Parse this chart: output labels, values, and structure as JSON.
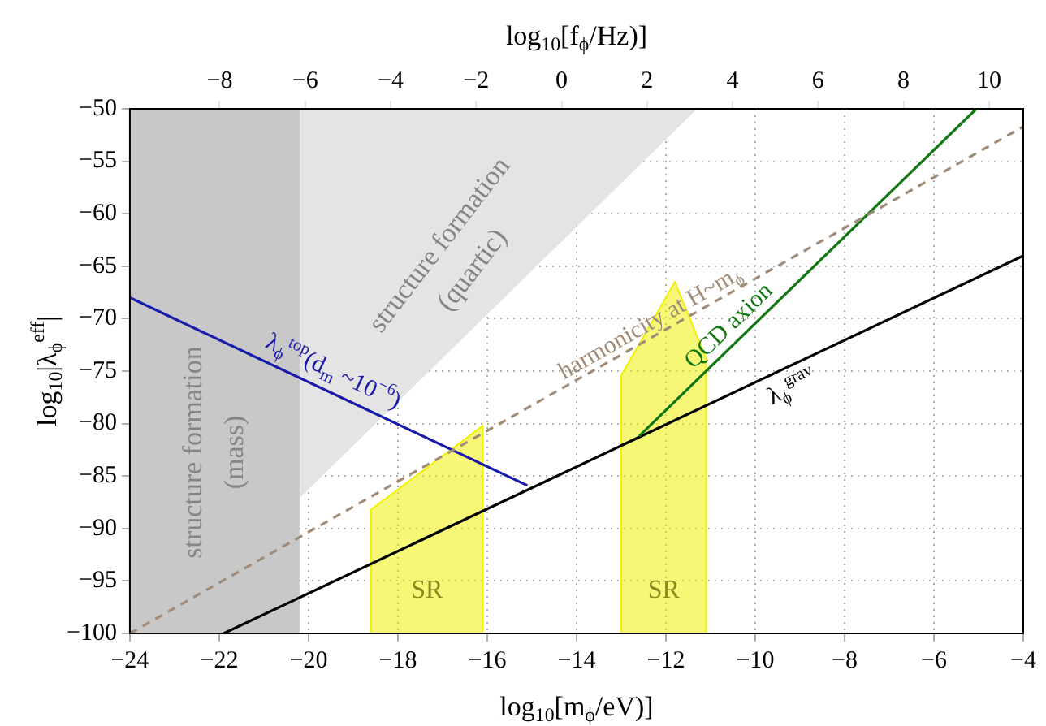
{
  "chart_data": {
    "type": "line",
    "xlabel": "log$_{10}$[m$_{ϕ}$/eV)]",
    "ylabel": "log$_{10}$|λ$_{ϕ}$$^{eff}$|",
    "x2label": "log$_{10}$[f$_{ϕ}$/Hz)]",
    "xlim": [
      -24,
      -4
    ],
    "xticks": [
      -24,
      -22,
      -20,
      -18,
      -16,
      -14,
      -12,
      -10,
      -8,
      -6,
      -4
    ],
    "ylim": [
      -100,
      -50
    ],
    "yticks": [
      -100,
      -95,
      -90,
      -85,
      -80,
      -75,
      -70,
      -65,
      -60,
      -55,
      -50
    ],
    "x2lim": [
      -10.1,
      10.8
    ],
    "x2ticks": [
      -8,
      -6,
      -4,
      -2,
      0,
      2,
      4,
      6,
      8,
      10
    ],
    "grid": true,
    "legend": false,
    "marker": "none",
    "bands": [
      {
        "axis": "x",
        "from": -24,
        "to": -20.2,
        "color": "#c8c8c8",
        "label": "structure formation (mass)"
      }
    ],
    "series": [
      {
        "type": "area",
        "name": "structure formation (quartic)",
        "color": "#e4e4e4",
        "x": [
          -20.2,
          -11.3
        ],
        "values": [
          -87.1,
          -50
        ]
      },
      {
        "type": "area",
        "name": "SR",
        "color": "#f0f000",
        "x": [
          -18.6,
          -18.6,
          -16.1,
          -16.1
        ],
        "values": [
          -100,
          -88.2,
          -80.2,
          -100
        ]
      },
      {
        "type": "area",
        "name": "SR",
        "color": "#f0f000",
        "x": [
          -13.0,
          -13.0,
          -11.8,
          -11.1,
          -11.1
        ],
        "values": [
          -100,
          -75.4,
          -66.5,
          -73.8,
          -100
        ]
      },
      {
        "name": "harmonicity at H~m$_{ϕ}$",
        "color": "#a08c78",
        "line_style": "dashed",
        "x": [
          -24,
          -4
        ],
        "values": [
          -100,
          -51.7
        ]
      },
      {
        "name": "λ$_{ϕ}$$^{top}$(d$_{m}$ ~10$^{−6}$)",
        "color": "#1a1aaa",
        "x": [
          -24,
          -15.1
        ],
        "values": [
          -68,
          -85.9
        ]
      },
      {
        "name": "QCD axion",
        "color": "#117711",
        "x": [
          -12.6,
          -5.05
        ],
        "values": [
          -81.2,
          -50
        ]
      },
      {
        "name": "λ$_{ϕ}$$^{grav}$",
        "color": "#000000",
        "x": [
          -21.9,
          -4
        ],
        "values": [
          -100,
          -64
        ]
      }
    ]
  }
}
